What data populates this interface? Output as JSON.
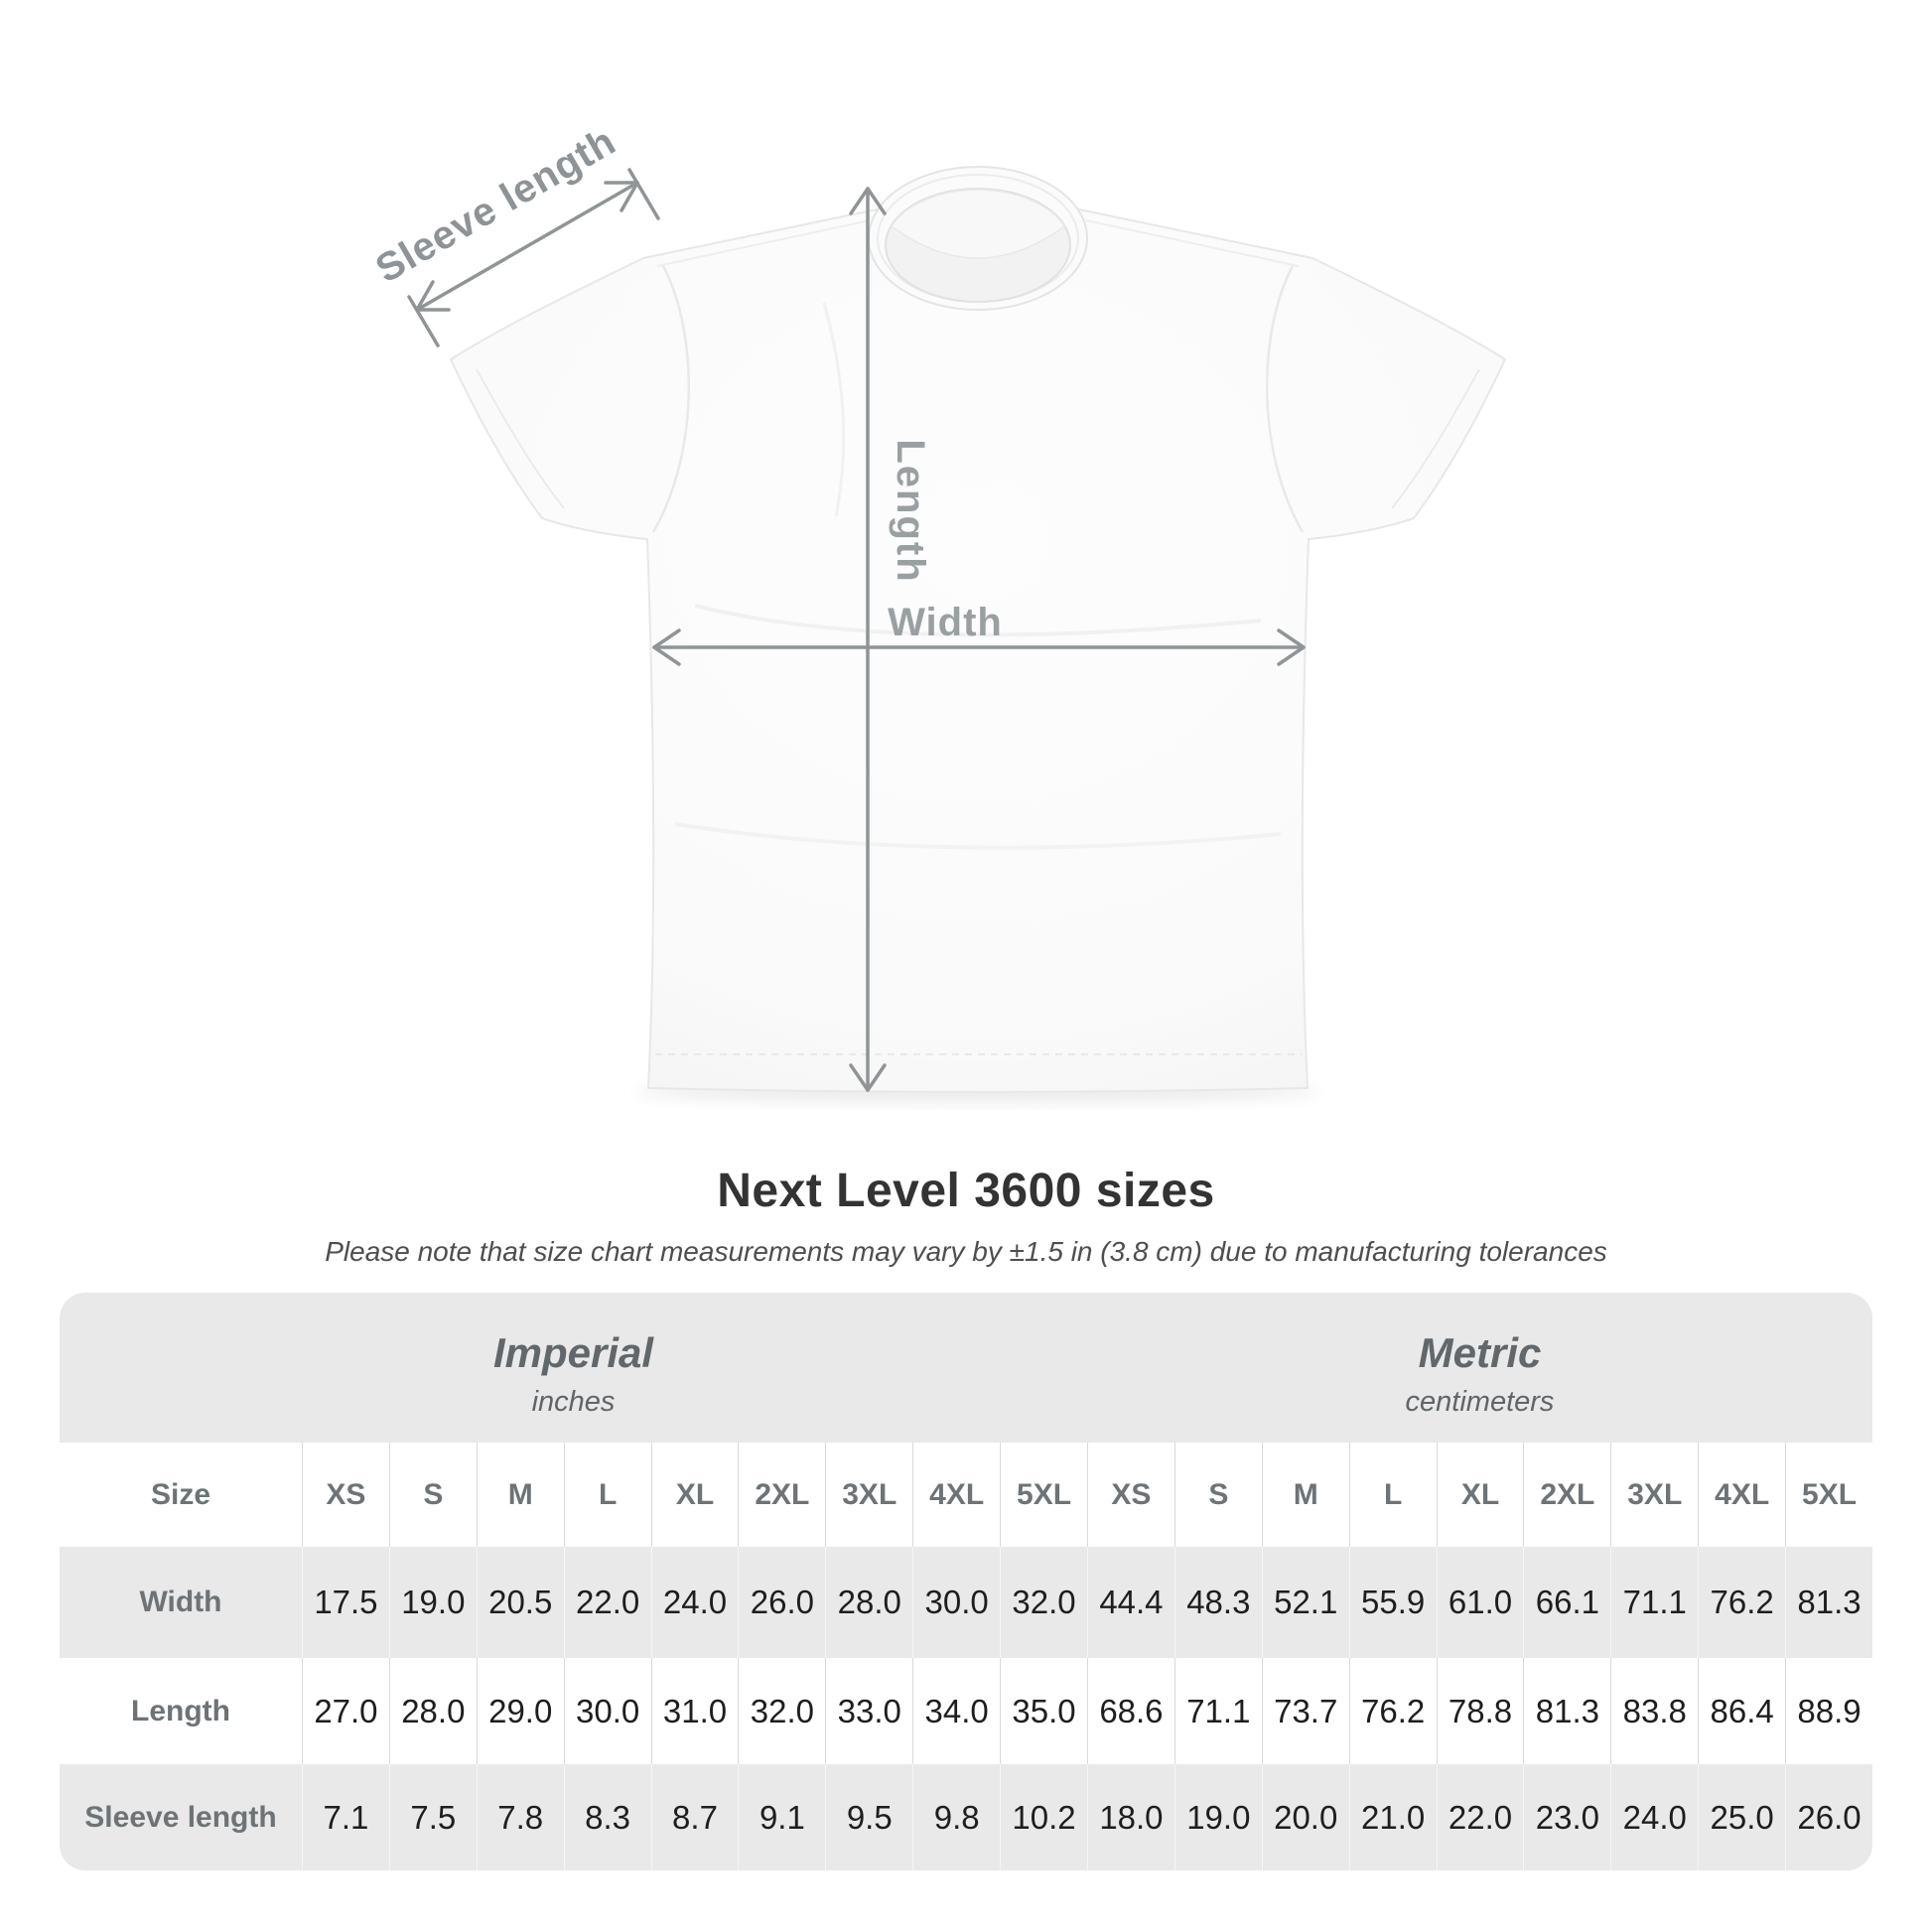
{
  "title": "Next Level 3600 sizes",
  "subtitle": "Please note that size chart measurements may vary by ±1.5 in (3.8 cm) due to manufacturing tolerances",
  "diagram": {
    "labels": {
      "sleeve_length": "Sleeve length",
      "length": "Length",
      "width": "Width"
    },
    "arrow_color": "#8f9496",
    "label_color": "#9aa0a2",
    "shirt_color": "#fbfbfb"
  },
  "table": {
    "background": "#e9e9e9",
    "size_label": "Size",
    "unit_groups": [
      {
        "name": "Imperial",
        "unit": "inches"
      },
      {
        "name": "Metric",
        "unit": "centimeters"
      }
    ],
    "sizes": [
      "XS",
      "S",
      "M",
      "L",
      "XL",
      "2XL",
      "3XL",
      "4XL",
      "5XL"
    ],
    "rows": [
      {
        "label": "Width",
        "values": [
          "17.5",
          "19.0",
          "20.5",
          "22.0",
          "24.0",
          "26.0",
          "28.0",
          "30.0",
          "32.0",
          "44.4",
          "48.3",
          "52.1",
          "55.9",
          "61.0",
          "66.1",
          "71.1",
          "76.2",
          "81.3"
        ]
      },
      {
        "label": "Length",
        "values": [
          "27.0",
          "28.0",
          "29.0",
          "30.0",
          "31.0",
          "32.0",
          "33.0",
          "34.0",
          "35.0",
          "68.6",
          "71.1",
          "73.7",
          "76.2",
          "78.8",
          "81.3",
          "83.8",
          "86.4",
          "88.9"
        ]
      },
      {
        "label": "Sleeve length",
        "values": [
          "7.1",
          "7.5",
          "7.8",
          "8.3",
          "8.7",
          "9.1",
          "9.5",
          "9.8",
          "10.2",
          "18.0",
          "19.0",
          "20.0",
          "21.0",
          "22.0",
          "23.0",
          "24.0",
          "25.0",
          "26.0"
        ]
      }
    ]
  },
  "chart_data": {
    "type": "table",
    "title": "Next Level 3600 sizes",
    "note": "Please note that size chart measurements may vary by ±1.5 in (3.8 cm) due to manufacturing tolerances",
    "column_groups": [
      "Imperial (inches)",
      "Metric (centimeters)"
    ],
    "sizes": [
      "XS",
      "S",
      "M",
      "L",
      "XL",
      "2XL",
      "3XL",
      "4XL",
      "5XL"
    ],
    "measurements": [
      {
        "label": "Width",
        "imperial_in": [
          17.5,
          19.0,
          20.5,
          22.0,
          24.0,
          26.0,
          28.0,
          30.0,
          32.0
        ],
        "metric_cm": [
          44.4,
          48.3,
          52.1,
          55.9,
          61.0,
          66.1,
          71.1,
          76.2,
          81.3
        ]
      },
      {
        "label": "Length",
        "imperial_in": [
          27.0,
          28.0,
          29.0,
          30.0,
          31.0,
          32.0,
          33.0,
          34.0,
          35.0
        ],
        "metric_cm": [
          68.6,
          71.1,
          73.7,
          76.2,
          78.8,
          81.3,
          83.8,
          86.4,
          88.9
        ]
      },
      {
        "label": "Sleeve length",
        "imperial_in": [
          7.1,
          7.5,
          7.8,
          8.3,
          8.7,
          9.1,
          9.5,
          9.8,
          10.2
        ],
        "metric_cm": [
          18.0,
          19.0,
          20.0,
          21.0,
          22.0,
          23.0,
          24.0,
          25.0,
          26.0
        ]
      }
    ]
  }
}
